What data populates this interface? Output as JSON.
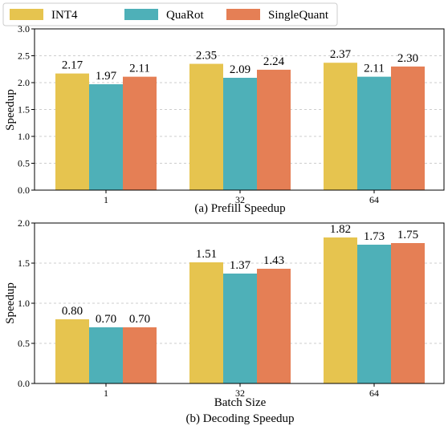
{
  "legend": [
    {
      "name": "INT4",
      "color": "#e6c44f"
    },
    {
      "name": "QuaRot",
      "color": "#4eb0b8"
    },
    {
      "name": "SingleQuant",
      "color": "#e57f55"
    }
  ],
  "chart_data": [
    {
      "type": "bar",
      "caption": "(a) Prefill Speedup",
      "xlabel": "",
      "ylabel": "Speedup",
      "categories": [
        "1",
        "32",
        "64"
      ],
      "ylim": [
        0,
        3.0
      ],
      "yticks": [
        "0.0",
        "0.5",
        "1.0",
        "1.5",
        "2.0",
        "2.5",
        "3.0"
      ],
      "grid": true,
      "series": [
        {
          "name": "INT4",
          "values": [
            2.17,
            2.35,
            2.37
          ],
          "labels": [
            "2.17",
            "2.35",
            "2.37"
          ]
        },
        {
          "name": "QuaRot",
          "values": [
            1.97,
            2.09,
            2.11
          ],
          "labels": [
            "1.97",
            "2.09",
            "2.11"
          ]
        },
        {
          "name": "SingleQuant",
          "values": [
            2.11,
            2.24,
            2.3
          ],
          "labels": [
            "2.11",
            "2.24",
            "2.30"
          ]
        }
      ]
    },
    {
      "type": "bar",
      "caption": "(b) Decoding Speedup",
      "xlabel": "Batch Size",
      "ylabel": "Speedup",
      "categories": [
        "1",
        "32",
        "64"
      ],
      "ylim": [
        0,
        2.0
      ],
      "yticks": [
        "0.0",
        "0.5",
        "1.0",
        "1.5",
        "2.0"
      ],
      "grid": true,
      "series": [
        {
          "name": "INT4",
          "values": [
            0.8,
            1.51,
            1.82
          ],
          "labels": [
            "0.80",
            "1.51",
            "1.82"
          ]
        },
        {
          "name": "QuaRot",
          "values": [
            0.7,
            1.37,
            1.73
          ],
          "labels": [
            "0.70",
            "1.37",
            "1.73"
          ]
        },
        {
          "name": "SingleQuant",
          "values": [
            0.7,
            1.43,
            1.75
          ],
          "labels": [
            "0.70",
            "1.43",
            "1.75"
          ]
        }
      ]
    }
  ]
}
